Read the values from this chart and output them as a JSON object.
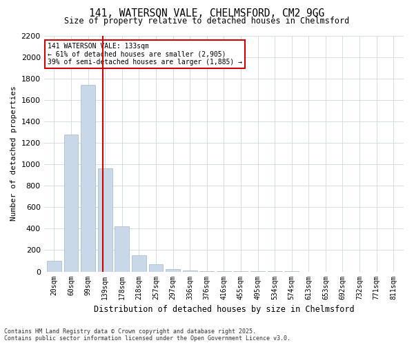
{
  "title_line1": "141, WATERSON VALE, CHELMSFORD, CM2 9GG",
  "title_line2": "Size of property relative to detached houses in Chelmsford",
  "xlabel": "Distribution of detached houses by size in Chelmsford",
  "ylabel": "Number of detached properties",
  "annotation_line1": "141 WATERSON VALE: 133sqm",
  "annotation_line2": "← 61% of detached houses are smaller (2,905)",
  "annotation_line3": "39% of semi-detached houses are larger (1,885) →",
  "property_size_sqm": 133,
  "bin_labels": [
    "20sqm",
    "60sqm",
    "99sqm",
    "139sqm",
    "178sqm",
    "218sqm",
    "257sqm",
    "297sqm",
    "336sqm",
    "376sqm",
    "416sqm",
    "455sqm",
    "495sqm",
    "534sqm",
    "574sqm",
    "613sqm",
    "653sqm",
    "692sqm",
    "732sqm",
    "771sqm",
    "811sqm"
  ],
  "bar_values": [
    100,
    1280,
    1740,
    960,
    420,
    150,
    65,
    25,
    10,
    5,
    3,
    2,
    1,
    1,
    1,
    0,
    0,
    0,
    0,
    0,
    0
  ],
  "bar_color": "#c8d8e8",
  "bar_edge_color": "#a0b8cc",
  "vline_color": "#cc0000",
  "vline_position": 2.5,
  "annotation_box_edge_color": "#cc0000",
  "ylim": [
    0,
    2200
  ],
  "yticks": [
    0,
    200,
    400,
    600,
    800,
    1000,
    1200,
    1400,
    1600,
    1800,
    2000,
    2200
  ],
  "grid_color": "#d0d8e0",
  "background_color": "#ffffff",
  "footer_line1": "Contains HM Land Registry data © Crown copyright and database right 2025.",
  "footer_line2": "Contains public sector information licensed under the Open Government Licence v3.0."
}
